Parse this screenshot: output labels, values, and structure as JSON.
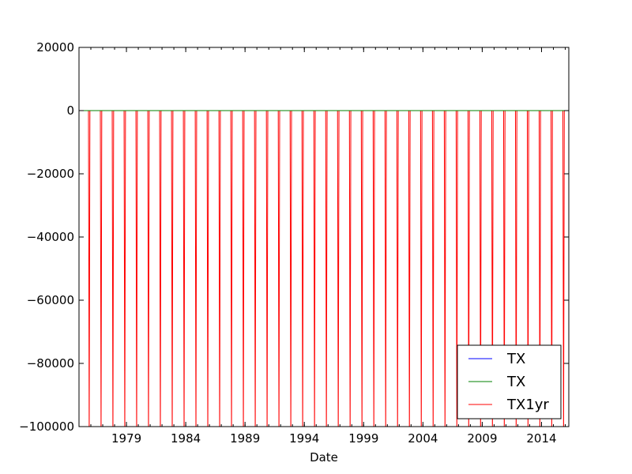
{
  "chart_data": {
    "type": "line",
    "title": "",
    "xlabel": "Date",
    "ylabel": "",
    "xlim": [
      1975.0,
      2016.3
    ],
    "ylim": [
      -100000,
      20000
    ],
    "x_tick_labels": [
      "1979",
      "1984",
      "1989",
      "1994",
      "1999",
      "2004",
      "2009",
      "2014"
    ],
    "y_tick_labels": [
      "20000",
      "0",
      "−20000",
      "−40000",
      "−60000",
      "−80000",
      "−100000"
    ],
    "grid": false,
    "legend_position": "lower-right",
    "series": [
      {
        "name": "TX",
        "color": "#0000ff",
        "description": "flat at 0 across full range",
        "values": [
          0,
          0
        ]
      },
      {
        "name": "TX",
        "color": "#008000",
        "description": "flat at 0 across full range",
        "values": [
          0,
          0
        ]
      },
      {
        "name": "TX1yr",
        "color": "#ff0000",
        "description": "stays at 0 with a drop below -100000 once per year",
        "drop_start_year": 1975.8,
        "drop_interval_years": 1.0,
        "drop_value": -100000
      }
    ]
  }
}
